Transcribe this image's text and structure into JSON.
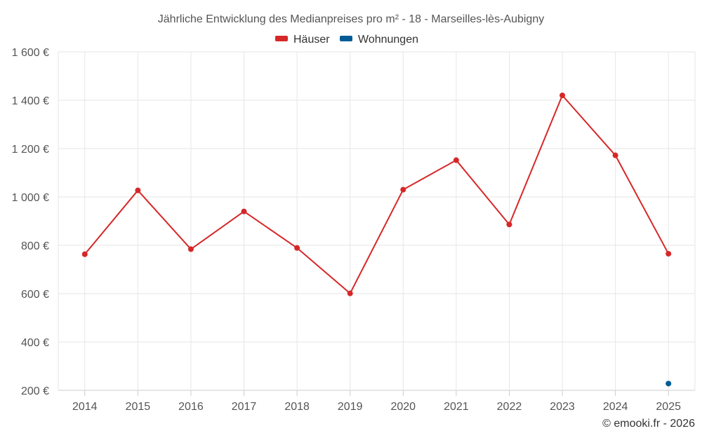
{
  "chart_data": {
    "type": "line",
    "title": "Jährliche Entwicklung des Medianpreises pro m² - 18 - Marseilles-lès-Aubigny",
    "categories": [
      "2014",
      "2015",
      "2016",
      "2017",
      "2018",
      "2019",
      "2020",
      "2021",
      "2022",
      "2023",
      "2024",
      "2025"
    ],
    "series": [
      {
        "name": "Häuser",
        "color": "#d62728",
        "values": [
          763,
          1027,
          784,
          940,
          789,
          601,
          1030,
          1152,
          886,
          1420,
          1172,
          765
        ]
      },
      {
        "name": "Wohnungen",
        "color": "#005b96",
        "values": [
          null,
          null,
          null,
          null,
          null,
          null,
          null,
          null,
          null,
          null,
          null,
          228
        ]
      }
    ],
    "ylim": [
      200,
      1600
    ],
    "yticks": [
      200,
      400,
      600,
      800,
      1000,
      1200,
      1400,
      1600
    ],
    "ytick_labels": [
      "200 €",
      "400 €",
      "600 €",
      "800 €",
      "1 000 €",
      "1 200 €",
      "1 400 €",
      "1 600 €"
    ],
    "grid": true,
    "legend_position": "top-center"
  },
  "credit": "© emooki.fr - 2026"
}
